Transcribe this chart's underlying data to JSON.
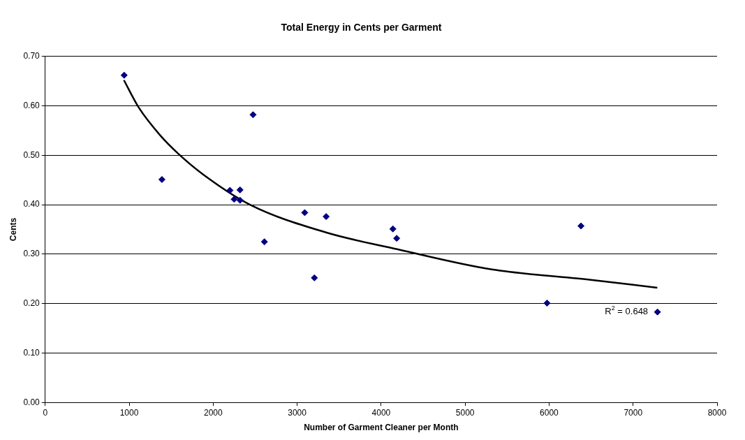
{
  "chart_data": {
    "type": "scatter",
    "title": "Total Energy in Cents per Garment",
    "xlabel": "Number of Garment Cleaner per Month",
    "ylabel": "Cents",
    "xlim": [
      0,
      8000
    ],
    "xticks": [
      0,
      1000,
      2000,
      3000,
      4000,
      5000,
      6000,
      7000,
      8000
    ],
    "ylim": [
      0,
      0.7
    ],
    "yticks": [
      {
        "value": 0,
        "label": "0.00"
      },
      {
        "value": 0.1,
        "label": "0.10"
      },
      {
        "value": 0.2,
        "label": "0.20"
      },
      {
        "value": 0.3,
        "label": "0.30"
      },
      {
        "value": 0.4,
        "label": "0.40"
      },
      {
        "value": 0.5,
        "label": "0.50"
      },
      {
        "value": 0.6,
        "label": "0.60"
      },
      {
        "value": 0.7,
        "label": "0.70"
      }
    ],
    "grid": "y",
    "legend": false,
    "marker": "diamond",
    "series": [
      {
        "color": "#000080",
        "x": [
          940,
          1390,
          2200,
          2320,
          2250,
          2320,
          2475,
          2610,
          3090,
          3345,
          3205,
          4140,
          4185,
          5975,
          6380,
          7290
        ],
        "values": [
          0.662,
          0.451,
          0.429,
          0.43,
          0.411,
          0.409,
          0.582,
          0.325,
          0.384,
          0.376,
          0.252,
          0.351,
          0.332,
          0.201,
          0.357,
          0.183
        ]
      },
      {
        "type": "line",
        "color": "#000000",
        "marker": "none",
        "x": [
          937,
          1112,
          1366,
          1592,
          1874,
          2439,
          3342,
          4189,
          5318,
          6447,
          7288
        ],
        "values": [
          0.652,
          0.597,
          0.541,
          0.502,
          0.462,
          0.4,
          0.344,
          0.31,
          0.269,
          0.249,
          0.232
        ]
      }
    ],
    "annotations": [
      "R$^{2}$ = 0.648"
    ]
  }
}
